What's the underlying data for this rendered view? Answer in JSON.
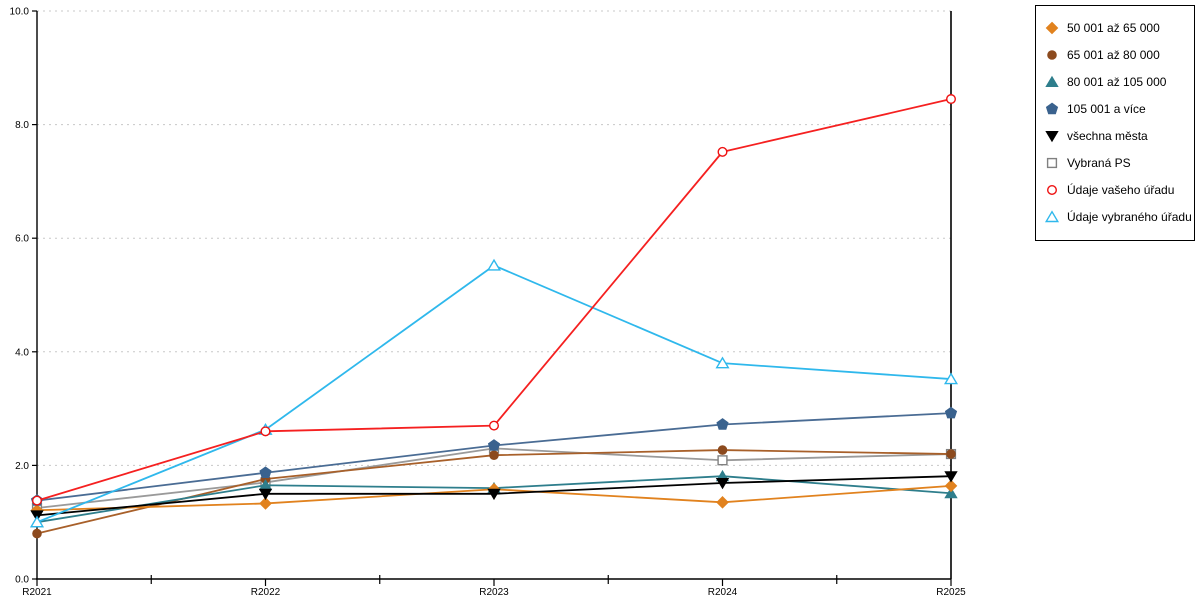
{
  "chart_data": {
    "type": "line",
    "title": "",
    "xlabel": "",
    "ylabel": "",
    "categories": [
      "R2021",
      "R2022",
      "R2023",
      "R2024",
      "R2025"
    ],
    "ylim": [
      0,
      10
    ],
    "yticks": [
      0,
      2,
      4,
      6,
      8,
      10
    ],
    "ytick_labels": [
      "0.0",
      "2.0",
      "4.0",
      "6.0",
      "8.0",
      "10.0"
    ],
    "grid": "horizontal-dashed",
    "grid_color": "#c8c8c8",
    "axis_color": "#000000",
    "legend_position": "outside-top-right",
    "series": [
      {
        "name": "50 001 až 65 000",
        "marker": "diamond",
        "filled": true,
        "color": "#E1821E",
        "line_color": "#E1821E",
        "values": [
          1.21,
          1.33,
          1.58,
          1.35,
          1.64
        ]
      },
      {
        "name": "65 001 až 80 000",
        "marker": "circle",
        "filled": true,
        "color": "#8C4A1E",
        "line_color": "#A8602A",
        "values": [
          0.8,
          1.76,
          2.18,
          2.27,
          2.2
        ]
      },
      {
        "name": "80 001 až 105 000",
        "marker": "triangle-up",
        "filled": true,
        "color": "#2E7E8C",
        "line_color": "#2E7E8C",
        "values": [
          1.0,
          1.65,
          1.6,
          1.81,
          1.51
        ]
      },
      {
        "name": "105 001 a více",
        "marker": "pentagon",
        "filled": true,
        "color": "#3A628E",
        "line_color": "#4A6C94",
        "values": [
          1.38,
          1.87,
          2.35,
          2.72,
          2.92
        ]
      },
      {
        "name": "všechna města",
        "marker": "triangle-down",
        "filled": true,
        "color": "#000000",
        "line_color": "#000000",
        "values": [
          1.12,
          1.5,
          1.5,
          1.69,
          1.81
        ]
      },
      {
        "name": "Vybraná PS",
        "marker": "square",
        "filled": false,
        "color": "#808080",
        "line_color": "#9A9A9A",
        "values": [
          1.25,
          1.7,
          2.3,
          2.09,
          2.2
        ]
      },
      {
        "name": "Údaje vašeho úřadu",
        "marker": "circle",
        "filled": false,
        "color": "#EE1111",
        "line_color": "#F52020",
        "values": [
          1.38,
          2.6,
          2.7,
          7.52,
          8.45
        ]
      },
      {
        "name": "Údaje vybraného úřadu",
        "marker": "triangle-up",
        "filled": false,
        "color": "#2FB8EC",
        "line_color": "#2FB8EC",
        "values": [
          1.0,
          2.63,
          5.52,
          3.8,
          3.52
        ]
      }
    ],
    "draw_order": [
      5,
      1,
      2,
      0,
      4,
      3,
      7,
      6
    ]
  }
}
